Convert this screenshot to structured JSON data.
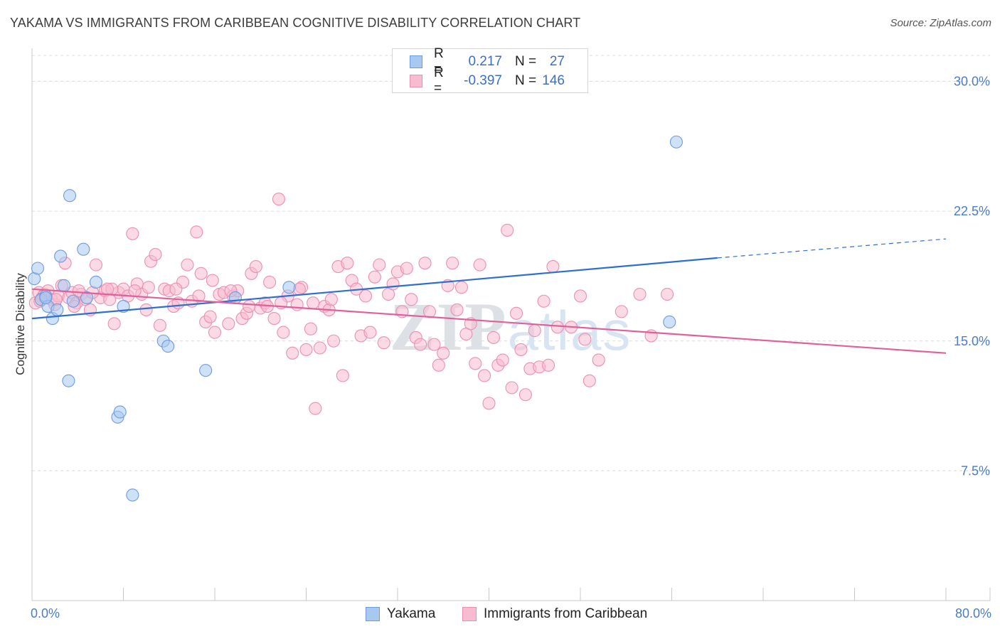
{
  "title": "YAKAMA VS IMMIGRANTS FROM CARIBBEAN COGNITIVE DISABILITY CORRELATION CHART",
  "source": "Source: ZipAtlas.com",
  "watermark": "ZIPatlas",
  "legend": {
    "rows": [
      {
        "r_label": "R =",
        "r_value": "0.217",
        "n_label": "N =",
        "n_value": "27",
        "color": "#a8c8f0",
        "border": "#6d9be0"
      },
      {
        "r_label": "R =",
        "r_value": "-0.397",
        "n_label": "N =",
        "n_value": "146",
        "color": "#f7bcd0",
        "border": "#ec8fb0"
      }
    ]
  },
  "bottom_legend": [
    {
      "label": "Yakama",
      "color": "#a8c8f0",
      "border": "#6d9be0"
    },
    {
      "label": "Immigrants from Caribbean",
      "color": "#f7bcd0",
      "border": "#ec8fb0"
    }
  ],
  "chart_data": {
    "type": "scatter",
    "title": "YAKAMA VS IMMIGRANTS FROM CARIBBEAN COGNITIVE DISABILITY CORRELATION CHART",
    "ylabel": "Cognitive Disability",
    "xlabel": "",
    "xlim": [
      0,
      80
    ],
    "ylim": [
      0,
      31.5
    ],
    "x_tick_labels": [
      "0.0%",
      "80.0%"
    ],
    "y_ticks": [
      7.5,
      15.0,
      22.5,
      30.0
    ],
    "y_tick_labels": [
      "7.5%",
      "15.0%",
      "22.5%",
      "30.0%"
    ],
    "grid": "horizontal dashed",
    "series": [
      {
        "name": "Yakama",
        "color": "#6d9be0",
        "fill": "#a8c8f0",
        "trend": {
          "x": [
            0,
            60
          ],
          "y": [
            16.3,
            19.8
          ],
          "dashed_extension": {
            "x": [
              60,
              80
            ],
            "y": [
              19.8,
              20.9
            ]
          }
        },
        "points": [
          [
            0.2,
            18.6
          ],
          [
            0.5,
            19.2
          ],
          [
            0.8,
            17.4
          ],
          [
            1.2,
            17.6
          ],
          [
            1.4,
            17.0
          ],
          [
            1.8,
            16.3
          ],
          [
            2.2,
            16.8
          ],
          [
            2.5,
            19.9
          ],
          [
            2.8,
            18.2
          ],
          [
            3.2,
            12.7
          ],
          [
            3.3,
            23.4
          ],
          [
            3.6,
            17.3
          ],
          [
            4.5,
            20.3
          ],
          [
            4.8,
            17.5
          ],
          [
            5.6,
            18.4
          ],
          [
            7.5,
            10.6
          ],
          [
            7.7,
            10.9
          ],
          [
            8.0,
            17.0
          ],
          [
            8.8,
            6.1
          ],
          [
            11.5,
            15.0
          ],
          [
            11.9,
            14.7
          ],
          [
            15.2,
            13.3
          ],
          [
            17.8,
            17.5
          ],
          [
            22.5,
            18.1
          ],
          [
            56.4,
            26.5
          ],
          [
            55.8,
            16.1
          ],
          [
            1.2,
            17.5
          ]
        ]
      },
      {
        "name": "Immigrants from Caribbean",
        "color": "#ec8fb0",
        "fill": "#f7bcd0",
        "trend": {
          "x": [
            0,
            80
          ],
          "y": [
            18.0,
            14.3
          ]
        },
        "points": [
          [
            0.3,
            17.2
          ],
          [
            0.6,
            17.8
          ],
          [
            0.9,
            17.5
          ],
          [
            1.1,
            17.7
          ],
          [
            1.4,
            17.9
          ],
          [
            1.7,
            17.4
          ],
          [
            2.0,
            17.1
          ],
          [
            2.3,
            17.6
          ],
          [
            2.6,
            18.2
          ],
          [
            2.9,
            19.5
          ],
          [
            3.2,
            17.5
          ],
          [
            3.5,
            17.8
          ],
          [
            3.9,
            17.2
          ],
          [
            4.3,
            17.7
          ],
          [
            4.7,
            17.4
          ],
          [
            5.1,
            16.8
          ],
          [
            5.6,
            19.4
          ],
          [
            6.0,
            17.5
          ],
          [
            6.4,
            17.9
          ],
          [
            6.8,
            17.4
          ],
          [
            7.2,
            16.0
          ],
          [
            7.6,
            17.8
          ],
          [
            8.0,
            18.0
          ],
          [
            8.4,
            17.6
          ],
          [
            8.8,
            21.2
          ],
          [
            9.2,
            18.3
          ],
          [
            9.6,
            17.7
          ],
          [
            10.0,
            16.8
          ],
          [
            10.4,
            19.6
          ],
          [
            10.8,
            20.0
          ],
          [
            11.2,
            15.9
          ],
          [
            11.6,
            18.0
          ],
          [
            12.0,
            17.9
          ],
          [
            12.4,
            17.0
          ],
          [
            12.8,
            17.2
          ],
          [
            13.2,
            18.4
          ],
          [
            13.6,
            19.4
          ],
          [
            14.0,
            17.3
          ],
          [
            14.4,
            21.3
          ],
          [
            14.8,
            18.9
          ],
          [
            15.2,
            16.1
          ],
          [
            15.6,
            16.4
          ],
          [
            16.0,
            15.5
          ],
          [
            16.4,
            17.7
          ],
          [
            16.8,
            17.8
          ],
          [
            17.2,
            16.0
          ],
          [
            17.6,
            17.6
          ],
          [
            18.0,
            17.9
          ],
          [
            18.4,
            16.3
          ],
          [
            18.8,
            16.6
          ],
          [
            19.2,
            18.9
          ],
          [
            19.6,
            19.3
          ],
          [
            20.0,
            16.9
          ],
          [
            20.4,
            17.2
          ],
          [
            20.8,
            18.4
          ],
          [
            21.2,
            16.3
          ],
          [
            21.6,
            23.2
          ],
          [
            22.0,
            15.5
          ],
          [
            22.4,
            17.6
          ],
          [
            22.8,
            14.3
          ],
          [
            23.2,
            17.1
          ],
          [
            23.6,
            18.1
          ],
          [
            24.0,
            14.5
          ],
          [
            24.4,
            15.7
          ],
          [
            24.8,
            11.1
          ],
          [
            25.2,
            14.6
          ],
          [
            25.6,
            17.0
          ],
          [
            26.0,
            16.8
          ],
          [
            26.4,
            15.0
          ],
          [
            26.8,
            19.3
          ],
          [
            27.2,
            13.0
          ],
          [
            27.6,
            19.5
          ],
          [
            28.0,
            18.5
          ],
          [
            28.4,
            18.0
          ],
          [
            28.8,
            15.3
          ],
          [
            29.2,
            17.6
          ],
          [
            29.6,
            15.5
          ],
          [
            30.0,
            18.7
          ],
          [
            30.4,
            19.4
          ],
          [
            30.8,
            14.9
          ],
          [
            31.2,
            17.7
          ],
          [
            31.6,
            18.3
          ],
          [
            32.0,
            19.0
          ],
          [
            32.4,
            16.7
          ],
          [
            32.8,
            19.2
          ],
          [
            33.2,
            17.4
          ],
          [
            33.6,
            15.2
          ],
          [
            34.0,
            14.8
          ],
          [
            34.4,
            19.5
          ],
          [
            34.8,
            16.7
          ],
          [
            35.2,
            14.8
          ],
          [
            35.6,
            13.6
          ],
          [
            36.0,
            14.3
          ],
          [
            36.4,
            18.2
          ],
          [
            36.8,
            19.5
          ],
          [
            37.2,
            16.8
          ],
          [
            37.6,
            18.1
          ],
          [
            38.0,
            15.4
          ],
          [
            38.4,
            16.0
          ],
          [
            38.8,
            13.7
          ],
          [
            39.2,
            19.4
          ],
          [
            39.6,
            13.0
          ],
          [
            40.0,
            11.4
          ],
          [
            40.4,
            15.2
          ],
          [
            40.8,
            13.6
          ],
          [
            41.2,
            13.9
          ],
          [
            41.6,
            21.4
          ],
          [
            42.0,
            12.3
          ],
          [
            42.4,
            16.6
          ],
          [
            42.8,
            14.5
          ],
          [
            43.2,
            11.9
          ],
          [
            43.6,
            13.4
          ],
          [
            44.0,
            15.6
          ],
          [
            44.4,
            13.5
          ],
          [
            44.8,
            17.3
          ],
          [
            45.2,
            13.6
          ],
          [
            45.6,
            19.3
          ],
          [
            46.0,
            15.8
          ],
          [
            47.2,
            15.8
          ],
          [
            48.0,
            17.6
          ],
          [
            48.4,
            15.1
          ],
          [
            48.8,
            12.7
          ],
          [
            49.6,
            13.9
          ],
          [
            51.6,
            16.7
          ],
          [
            53.2,
            17.7
          ],
          [
            54.2,
            15.3
          ],
          [
            55.6,
            17.7
          ],
          [
            9.0,
            17.9
          ],
          [
            7.0,
            18.0
          ],
          [
            10.2,
            18.1
          ],
          [
            12.6,
            18.0
          ],
          [
            14.6,
            17.6
          ],
          [
            15.8,
            18.5
          ],
          [
            17.4,
            17.9
          ],
          [
            19.0,
            17.0
          ],
          [
            20.6,
            17.0
          ],
          [
            21.8,
            17.2
          ],
          [
            23.4,
            18.0
          ],
          [
            24.6,
            17.2
          ],
          [
            26.2,
            17.4
          ],
          [
            5.3,
            17.8
          ],
          [
            6.6,
            18.0
          ],
          [
            3.7,
            17.0
          ],
          [
            2.1,
            17.4
          ],
          [
            1.0,
            17.6
          ],
          [
            0.7,
            17.3
          ],
          [
            4.1,
            17.9
          ]
        ]
      }
    ]
  }
}
